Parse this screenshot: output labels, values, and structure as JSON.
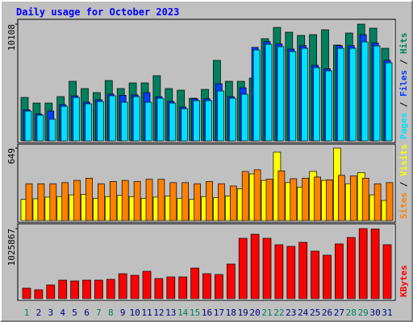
{
  "chart_data": [
    {
      "type": "bar",
      "title": "Daily usage for October 2023",
      "ylim": [
        0,
        10108
      ],
      "yticks": [
        10108
      ],
      "legend_separator": " / ",
      "series": [
        {
          "name": "Hits",
          "color": "#00805c",
          "values": [
            3764,
            3276,
            3276,
            3834,
            5159,
            4531,
            4183,
            5228,
            4531,
            5019,
            5019,
            5647,
            4531,
            4392,
            3695,
            4461,
            6971,
            5159,
            5159,
            5437,
            8853,
            9829,
            9411,
            9132,
            9202,
            9620,
            8296,
            9341,
            10108,
            9760,
            8017
          ]
        },
        {
          "name": "Files",
          "color": "#0040ff",
          "values": [
            2700,
            2330,
            2580,
            3140,
            3900,
            3350,
            3560,
            4050,
            3950,
            3980,
            4180,
            3830,
            3420,
            2930,
            3640,
            3640,
            4950,
            3830,
            4600,
            8100,
            8600,
            8400,
            7950,
            8250,
            6550,
            6250,
            8250,
            8250,
            9200,
            8480,
            6980
          ]
        },
        {
          "name": "Pages",
          "color": "#00e0ff",
          "values": [
            2579,
            2230,
            1882,
            2997,
            3764,
            3206,
            3415,
            3903,
            3346,
            3834,
            3346,
            3694,
            3276,
            2788,
            3485,
            3485,
            4322,
            3694,
            4043,
            7876,
            8364,
            8155,
            7737,
            8016,
            6343,
            6064,
            8016,
            8016,
            8573,
            8225,
            6761
          ]
        }
      ]
    },
    {
      "type": "bar",
      "ylim": [
        0,
        649
      ],
      "yticks": [
        649
      ],
      "legend_separator": " / ",
      "series": [
        {
          "name": "Visits",
          "color": "#ffff00",
          "values": [
            190,
            195,
            210,
            215,
            230,
            235,
            200,
            215,
            225,
            215,
            200,
            210,
            220,
            200,
            190,
            215,
            205,
            220,
            285,
            418,
            360,
            613,
            340,
            300,
            440,
            360,
            649,
            330,
            430,
            230,
            180
          ]
        },
        {
          "name": "Sites",
          "color": "#ff8000",
          "values": [
            330,
            330,
            330,
            340,
            360,
            380,
            330,
            350,
            360,
            350,
            370,
            370,
            340,
            340,
            330,
            350,
            330,
            310,
            440,
            455,
            370,
            445,
            375,
            380,
            390,
            365,
            405,
            400,
            380,
            330,
            340
          ]
        }
      ]
    },
    {
      "type": "bar",
      "ylim": [
        0,
        1025867
      ],
      "yticks": [
        1025867
      ],
      "categories": [
        "1",
        "2",
        "3",
        "4",
        "5",
        "6",
        "7",
        "8",
        "9",
        "10",
        "11",
        "12",
        "13",
        "14",
        "15",
        "16",
        "17",
        "18",
        "19",
        "20",
        "21",
        "22",
        "23",
        "24",
        "25",
        "26",
        "27",
        "28",
        "29",
        "30",
        "31"
      ],
      "label_color": "#000080",
      "weekend_color": "#00805c",
      "weekend": [
        0,
        6,
        7,
        13,
        14,
        20,
        21,
        27,
        28
      ],
      "series": [
        {
          "name": "KBytes",
          "color": "#ff0000",
          "values": [
            153289,
            129706,
            200451,
            271197,
            259405,
            271197,
            271197,
            282990,
            365528,
            341945,
            400902,
            294782,
            318372,
            318372,
            448071,
            365528,
            353741,
            507027,
            884368,
            943326,
            884368,
            790035,
            766449,
            825400,
            695695,
            636737,
            801811,
            896144,
            1025867,
            1020000,
            790035
          ]
        }
      ]
    }
  ]
}
